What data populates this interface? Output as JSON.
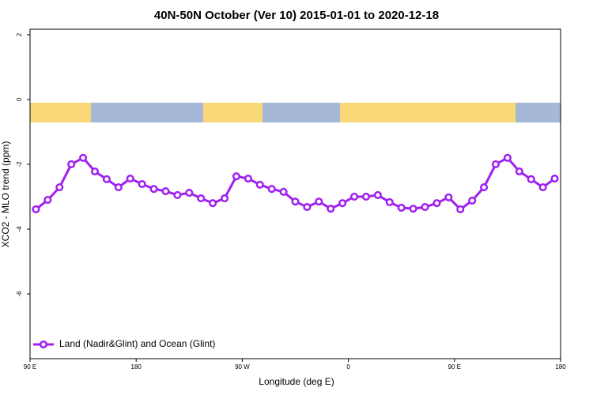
{
  "chart_data": {
    "type": "line",
    "title": "40N-50N October (Ver 10)   2015-01-01 to 2020-12-18",
    "x_label": "Longitude (deg E)",
    "y_label": "XCO2 - MLO trend (ppm)",
    "x": [
      95,
      105,
      115,
      125,
      135,
      145,
      155,
      165,
      175,
      185,
      195,
      205,
      215,
      225,
      235,
      245,
      255,
      265,
      275,
      285,
      295,
      305,
      315,
      325,
      335,
      345,
      355,
      365,
      375,
      385,
      395,
      405,
      415,
      425,
      435,
      445,
      455,
      465,
      475,
      485,
      495,
      505,
      515,
      525,
      535
    ],
    "series": [
      {
        "name": "Land (Nadir&Glint) and Ocean (Glint)",
        "color": "#a020f0",
        "values": [
          -3.39,
          -3.1,
          -2.71,
          -2.0,
          -1.8,
          -2.22,
          -2.46,
          -2.71,
          -2.44,
          -2.61,
          -2.76,
          -2.83,
          -2.95,
          -2.88,
          -3.05,
          -3.2,
          -3.05,
          -2.37,
          -2.44,
          -2.63,
          -2.76,
          -2.85,
          -3.15,
          -3.32,
          -3.15,
          -3.37,
          -3.2,
          -3.0,
          -3.0,
          -2.95,
          -3.17,
          -3.34,
          -3.37,
          -3.32,
          -3.2,
          -3.02,
          -3.39,
          -3.12,
          -2.71,
          -2.0,
          -1.8,
          -2.22,
          -2.46,
          -2.71,
          -2.44
        ]
      }
    ],
    "xlim": [
      90,
      540
    ],
    "xticks": [
      {
        "value": 90,
        "label": "90 E"
      },
      180,
      {
        "value": 270,
        "label": "90 W"
      },
      {
        "value": 360,
        "label": "0"
      },
      {
        "value": 450,
        "label": "90 E"
      },
      {
        "value": 540,
        "label": "180"
      }
    ],
    "ylim": [
      -8,
      2.17
    ],
    "yticks": [
      2,
      0,
      -2,
      -4,
      -6
    ],
    "legend": "bottom-left"
  }
}
